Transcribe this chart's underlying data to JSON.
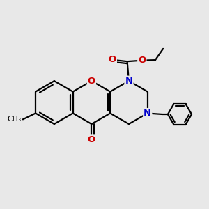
{
  "background_color": "#e8e8e8",
  "bond_color": "#000000",
  "N_color": "#0000cc",
  "O_color": "#cc0000",
  "lw": 1.6,
  "figsize": [
    3.0,
    3.0
  ],
  "dpi": 100,
  "xlim": [
    0,
    10
  ],
  "ylim": [
    0,
    10
  ]
}
